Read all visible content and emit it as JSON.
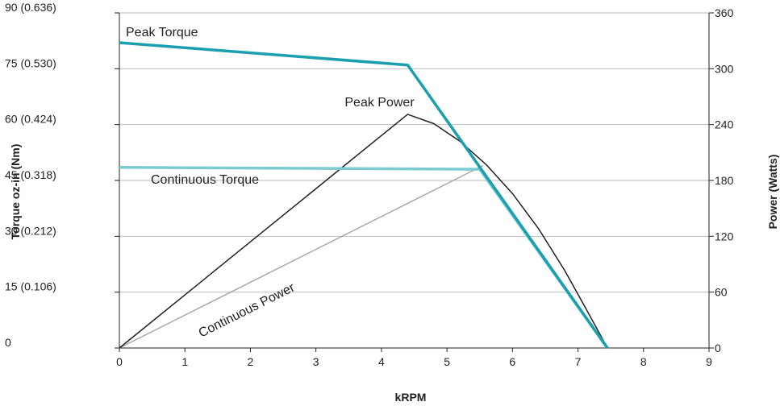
{
  "chart_data": {
    "type": "line",
    "xlabel": "kRPM",
    "ylabel_left": "Torque oz-in (Nm)",
    "ylabel_right": "Power (Watts)",
    "xlim": [
      0,
      9
    ],
    "ylim_left": [
      0,
      90
    ],
    "ylim_right": [
      0,
      360
    ],
    "grid": "horizontal",
    "x_ticks": [
      0,
      1,
      2,
      3,
      4,
      5,
      6,
      7,
      8,
      9
    ],
    "x_tick_labels": [
      "0",
      "1",
      "2",
      "3",
      "4",
      "5",
      "6",
      "7",
      "8",
      "9"
    ],
    "y_left_ticks": [
      0,
      15,
      30,
      45,
      60,
      75,
      90
    ],
    "y_left_tick_labels": [
      "0",
      "15 (0.106)",
      "30 (0.212)",
      "45 (0.318)",
      "60 (0.424)",
      "75 (0.530)",
      "90 (0.636)"
    ],
    "y_right_ticks": [
      0,
      60,
      120,
      180,
      240,
      300,
      360
    ],
    "y_right_tick_labels": [
      "0",
      "60",
      "120",
      "180",
      "240",
      "300",
      "360"
    ],
    "series": [
      {
        "name": "Peak Torque",
        "axis": "left",
        "color": "#1a9fae",
        "x": [
          0,
          4.4,
          7.45
        ],
        "y": [
          82,
          76,
          0
        ]
      },
      {
        "name": "Continuous Torque",
        "axis": "left",
        "color": "#7ccbd3",
        "x": [
          0,
          5.5,
          7.45
        ],
        "y": [
          48.5,
          48,
          0
        ]
      },
      {
        "name": "Peak Power",
        "axis": "right",
        "color": "#231f20",
        "x": [
          0,
          4.4,
          4.8,
          5.2,
          5.6,
          6.0,
          6.4,
          6.8,
          7.1,
          7.45
        ],
        "y": [
          0,
          251,
          241,
          222,
          197,
          166,
          128,
          83,
          45,
          0
        ]
      },
      {
        "name": "Continuous Power",
        "axis": "right",
        "color": "#a7a9ac",
        "x": [
          0,
          5.55
        ],
        "y": [
          0,
          196
        ]
      }
    ],
    "annotations": [
      {
        "text": "Peak Torque",
        "series": "Peak Torque"
      },
      {
        "text": "Peak Power",
        "series": "Peak Power"
      },
      {
        "text": "Continuous Torque",
        "series": "Continuous Torque"
      },
      {
        "text": "Continuous Power",
        "series": "Continuous Power"
      }
    ]
  }
}
